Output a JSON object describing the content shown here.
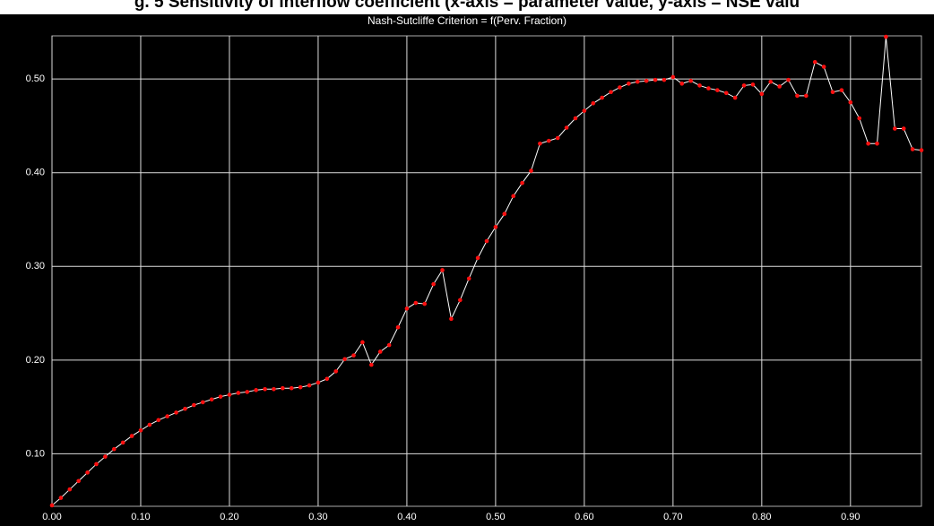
{
  "caption": "g. 5 Sensitivity of interflow coefficient (x-axis = parameter value, y-axis = NSE valu",
  "chart_data": {
    "type": "line",
    "title": "Nash-Sutcliffe Criterion = f(Perv. Fraction)",
    "x": [
      0,
      0.01,
      0.02,
      0.03,
      0.04,
      0.05,
      0.06,
      0.07,
      0.08,
      0.09,
      0.1,
      0.11,
      0.12,
      0.13,
      0.14,
      0.15,
      0.16,
      0.17,
      0.18,
      0.19,
      0.2,
      0.21,
      0.22,
      0.23,
      0.24,
      0.25,
      0.26,
      0.27,
      0.28,
      0.29,
      0.3,
      0.31,
      0.32,
      0.33,
      0.34,
      0.35,
      0.36,
      0.37,
      0.38,
      0.39,
      0.4,
      0.41,
      0.42,
      0.43,
      0.44,
      0.45,
      0.46,
      0.47,
      0.48,
      0.49,
      0.5,
      0.51,
      0.52,
      0.53,
      0.54,
      0.55,
      0.56,
      0.57,
      0.58,
      0.59,
      0.6,
      0.61,
      0.62,
      0.63,
      0.64,
      0.65,
      0.66,
      0.67,
      0.68,
      0.69,
      0.7,
      0.71,
      0.72,
      0.73,
      0.74,
      0.75,
      0.76,
      0.77,
      0.78,
      0.79,
      0.8,
      0.81,
      0.82,
      0.83,
      0.84,
      0.85,
      0.86,
      0.87,
      0.88,
      0.89,
      0.9,
      0.91,
      0.92,
      0.93,
      0.94,
      0.95,
      0.96,
      0.97,
      0.98
    ],
    "values": [
      0.045,
      0.053,
      0.062,
      0.071,
      0.08,
      0.089,
      0.097,
      0.105,
      0.112,
      0.119,
      0.125,
      0.131,
      0.136,
      0.14,
      0.144,
      0.148,
      0.152,
      0.155,
      0.158,
      0.161,
      0.163,
      0.165,
      0.166,
      0.168,
      0.169,
      0.169,
      0.17,
      0.17,
      0.171,
      0.173,
      0.176,
      0.18,
      0.188,
      0.201,
      0.205,
      0.219,
      0.195,
      0.209,
      0.216,
      0.235,
      0.255,
      0.261,
      0.26,
      0.281,
      0.296,
      0.244,
      0.264,
      0.287,
      0.309,
      0.327,
      0.342,
      0.356,
      0.375,
      0.389,
      0.402,
      0.431,
      0.434,
      0.437,
      0.448,
      0.458,
      0.466,
      0.474,
      0.48,
      0.486,
      0.491,
      0.495,
      0.497,
      0.498,
      0.499,
      0.499,
      0.502,
      0.495,
      0.498,
      0.493,
      0.49,
      0.488,
      0.485,
      0.48,
      0.493,
      0.494,
      0.484,
      0.497,
      0.492,
      0.499,
      0.482,
      0.482,
      0.518,
      0.513,
      0.486,
      0.488,
      0.475,
      0.458,
      0.431,
      0.431,
      0.545,
      0.447,
      0.447,
      0.425,
      0.424
    ],
    "color": "#ffffff",
    "marker_color": "#ff1010",
    "xlim": [
      0,
      0.98
    ],
    "ylim": [
      0.044,
      0.546
    ],
    "xticks": [
      {
        "value": 0,
        "label": "0.00"
      },
      {
        "value": 0.1,
        "label": "0.10"
      },
      {
        "value": 0.2,
        "label": "0.20"
      },
      {
        "value": 0.3,
        "label": "0.30"
      },
      {
        "value": 0.4,
        "label": "0.40"
      },
      {
        "value": 0.5,
        "label": "0.50"
      },
      {
        "value": 0.6,
        "label": "0.60"
      },
      {
        "value": 0.7,
        "label": "0.70"
      },
      {
        "value": 0.8,
        "label": "0.80"
      },
      {
        "value": 0.9,
        "label": "0.90"
      }
    ],
    "yticks": [
      {
        "value": 0.1,
        "label": "0.10"
      },
      {
        "value": 0.2,
        "label": "0.20"
      },
      {
        "value": 0.3,
        "label": "0.30"
      },
      {
        "value": 0.4,
        "label": "0.40"
      },
      {
        "value": 0.5,
        "label": "0.50"
      }
    ],
    "grid": true
  }
}
